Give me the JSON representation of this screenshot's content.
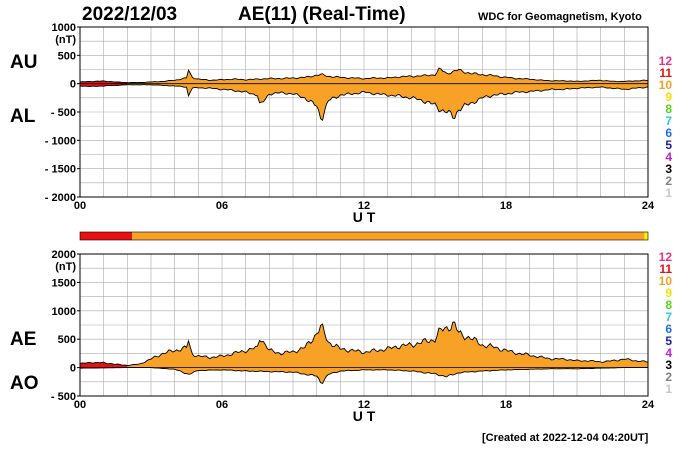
{
  "header": {
    "date": "2022/12/03",
    "title": "AE(11) (Real-Time)",
    "source": "WDC for Geomagnetism, Kyoto",
    "created": "[Created at 2022-12-04 04:20UT]"
  },
  "legend": {
    "entries": [
      {
        "label": "12",
        "color": "#e8338a"
      },
      {
        "label": "11",
        "color": "#e81010"
      },
      {
        "label": "10",
        "color": "#f5a023"
      },
      {
        "label": "9",
        "color": "#f0e200"
      },
      {
        "label": "8",
        "color": "#58d418"
      },
      {
        "label": "7",
        "color": "#30c8e8"
      },
      {
        "label": "6",
        "color": "#1e6ee6"
      },
      {
        "label": "5",
        "color": "#2020a0"
      },
      {
        "label": "4",
        "color": "#c420d8"
      },
      {
        "label": "3",
        "color": "#000000"
      },
      {
        "label": "2",
        "color": "#808080"
      },
      {
        "label": "1",
        "color": "#c8c8c8"
      }
    ]
  },
  "colors": {
    "fill": "#f7a227",
    "red": "#e81010",
    "yellow": "#f5f500"
  },
  "chart_data": [
    {
      "type": "area",
      "upper_label": "AU",
      "lower_label": "AL",
      "unit": "(nT)",
      "xlabel": "U T",
      "xlim": [
        0,
        24
      ],
      "ylim": [
        -2000,
        1000
      ],
      "yticks": [
        {
          "value": 1000,
          "label": "1000"
        },
        {
          "value": 500,
          "label": "500"
        },
        {
          "value": 0,
          "label": "0"
        },
        {
          "value": -500,
          "label": "- 500"
        },
        {
          "value": -1000,
          "label": "- 1000"
        },
        {
          "value": -1500,
          "label": "- 1500"
        },
        {
          "value": -2000,
          "label": "- 2000"
        }
      ],
      "xticks": [
        {
          "value": 0,
          "label": "00"
        },
        {
          "value": 6,
          "label": "06"
        },
        {
          "value": 12,
          "label": "12"
        },
        {
          "value": 18,
          "label": "18"
        },
        {
          "value": 24,
          "label": "24"
        }
      ],
      "upper_series": {
        "name": "AU",
        "x": [
          0,
          0.5,
          1,
          1.5,
          2,
          2.5,
          3,
          3.5,
          4,
          4.5,
          4.6,
          4.7,
          5,
          5.5,
          6,
          6.5,
          7,
          7.5,
          8,
          8.5,
          9,
          9.5,
          10,
          10.2,
          10.5,
          11,
          11.5,
          12,
          12.5,
          13,
          13.5,
          14,
          14.5,
          15,
          15.2,
          15.5,
          16,
          16.5,
          17,
          17.5,
          18,
          18.5,
          19,
          19.5,
          20,
          20.5,
          21,
          21.5,
          22,
          22.5,
          23,
          23.5,
          24
        ],
        "values": [
          30,
          40,
          45,
          30,
          20,
          20,
          30,
          40,
          60,
          100,
          270,
          120,
          80,
          60,
          70,
          80,
          70,
          80,
          90,
          90,
          100,
          110,
          150,
          160,
          130,
          110,
          100,
          90,
          100,
          100,
          120,
          130,
          140,
          160,
          260,
          180,
          240,
          180,
          160,
          140,
          110,
          90,
          80,
          60,
          50,
          50,
          40,
          50,
          60,
          40,
          40,
          50,
          60
        ]
      },
      "lower_series": {
        "name": "AL",
        "x": [
          0,
          0.5,
          1,
          1.5,
          2,
          2.5,
          3,
          3.5,
          4,
          4.5,
          4.6,
          4.7,
          5,
          5.5,
          6,
          6.5,
          7,
          7.5,
          7.6,
          8,
          8.5,
          9,
          9.5,
          10,
          10.2,
          10.5,
          11,
          11.5,
          12,
          12.5,
          13,
          13.5,
          14,
          14.5,
          15,
          15.2,
          15.5,
          15.8,
          16,
          16.5,
          17,
          17.5,
          18,
          18.5,
          19,
          19.5,
          20,
          20.5,
          21,
          21.5,
          22,
          22.5,
          23,
          23.5,
          24
        ],
        "values": [
          -40,
          -50,
          -40,
          -30,
          -20,
          -20,
          -20,
          -30,
          -40,
          -60,
          -250,
          -80,
          -70,
          -80,
          -100,
          -120,
          -150,
          -200,
          -400,
          -180,
          -160,
          -180,
          -250,
          -400,
          -620,
          -300,
          -200,
          -180,
          -150,
          -180,
          -200,
          -220,
          -250,
          -300,
          -380,
          -450,
          -500,
          -600,
          -450,
          -350,
          -250,
          -200,
          -180,
          -150,
          -140,
          -120,
          -100,
          -100,
          -80,
          -70,
          -60,
          -80,
          -100,
          -80,
          -60
        ]
      },
      "status_bar": false
    },
    {
      "type": "area",
      "upper_label": "AE",
      "lower_label": "AO",
      "unit": "(nT)",
      "xlabel": "U T",
      "xlim": [
        0,
        24
      ],
      "ylim": [
        -500,
        2000
      ],
      "yticks": [
        {
          "value": 2000,
          "label": "2000"
        },
        {
          "value": 1500,
          "label": "1500"
        },
        {
          "value": 1000,
          "label": "1000"
        },
        {
          "value": 500,
          "label": "500"
        },
        {
          "value": 0,
          "label": "0"
        },
        {
          "value": -500,
          "label": "- 500"
        }
      ],
      "xticks": [
        {
          "value": 0,
          "label": "00"
        },
        {
          "value": 6,
          "label": "06"
        },
        {
          "value": 12,
          "label": "12"
        },
        {
          "value": 18,
          "label": "18"
        },
        {
          "value": 24,
          "label": "24"
        }
      ],
      "upper_series": {
        "name": "AE",
        "x": [
          0,
          0.5,
          1,
          1.5,
          2,
          2.5,
          3,
          3.5,
          4,
          4.5,
          4.6,
          4.7,
          5,
          5.5,
          6,
          6.5,
          7,
          7.5,
          7.6,
          8,
          8.5,
          9,
          9.5,
          10,
          10.2,
          10.5,
          11,
          11.5,
          12,
          12.5,
          13,
          13.5,
          14,
          14.5,
          15,
          15.2,
          15.5,
          15.8,
          16,
          16.5,
          17,
          17.5,
          18,
          18.5,
          19,
          19.5,
          20,
          20.5,
          21,
          21.5,
          22,
          22.5,
          23,
          23.5,
          24
        ],
        "values": [
          70,
          90,
          85,
          60,
          40,
          60,
          150,
          250,
          300,
          350,
          500,
          250,
          200,
          180,
          200,
          250,
          300,
          350,
          550,
          300,
          250,
          280,
          350,
          600,
          720,
          450,
          330,
          300,
          270,
          300,
          330,
          380,
          400,
          450,
          500,
          640,
          700,
          780,
          600,
          520,
          400,
          360,
          300,
          250,
          220,
          180,
          150,
          150,
          120,
          120,
          100,
          120,
          150,
          120,
          100
        ]
      },
      "lower_series": {
        "name": "AO",
        "x": [
          0,
          1,
          2,
          3,
          4,
          4.6,
          5,
          6,
          7,
          8,
          9,
          10,
          10.2,
          10.5,
          11,
          12,
          13,
          14,
          15,
          15.5,
          16,
          17,
          18,
          19,
          20,
          21,
          22,
          23,
          24
        ],
        "values": [
          -10,
          -5,
          0,
          0,
          -30,
          -120,
          -50,
          -40,
          -60,
          -70,
          -80,
          -150,
          -270,
          -120,
          -60,
          -40,
          -40,
          -60,
          -110,
          -160,
          -90,
          -60,
          -40,
          -30,
          -20,
          -20,
          -10,
          0,
          0
        ]
      },
      "status_bar": true
    }
  ]
}
